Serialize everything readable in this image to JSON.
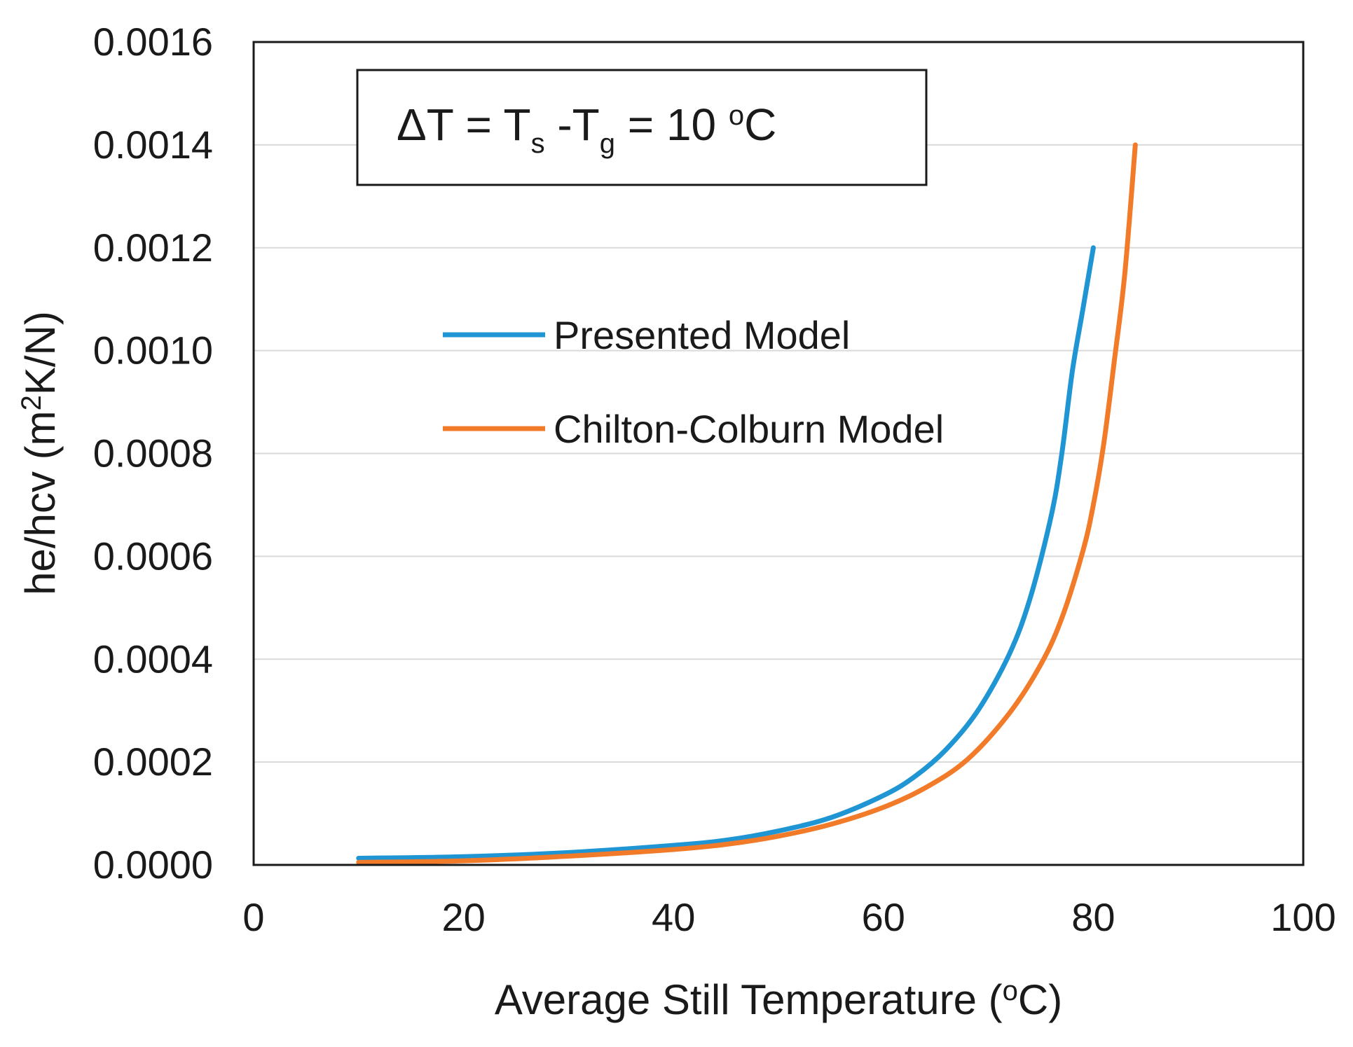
{
  "chart_data": {
    "type": "line",
    "title": "",
    "annotation": {
      "lead": "ΔT = T",
      "sub1": "s",
      "mid": " -T",
      "sub2": "g",
      "tail": " = 10 ",
      "sup": "o",
      "unit": "C"
    },
    "xlabel": {
      "main": "Average Still Temperature (",
      "sup": "o",
      "unit": "C)"
    },
    "ylabel": {
      "main": "he/hcv (m",
      "sup": "2",
      "unit": "K/N)"
    },
    "xlim": [
      0,
      100
    ],
    "ylim": [
      0,
      0.0016
    ],
    "xticks": [
      0,
      20,
      40,
      60,
      80,
      100
    ],
    "yticks": [
      0,
      0.0002,
      0.0004,
      0.0006,
      0.0008,
      0.001,
      0.0012,
      0.0014,
      0.0016
    ],
    "ytick_labels": [
      "0.0000",
      "0.0002",
      "0.0004",
      "0.0006",
      "0.0008",
      "0.0010",
      "0.0012",
      "0.0014",
      "0.0016"
    ],
    "xtick_labels": [
      "0",
      "20",
      "40",
      "60",
      "80",
      "100"
    ],
    "grid": "horizontal",
    "legend_position": "center-left",
    "series": [
      {
        "name": "Presented Model",
        "color": "#1f95d4",
        "x": [
          10,
          20,
          30,
          40,
          45,
          50,
          55,
          60,
          63,
          66,
          69,
          72,
          74,
          76,
          77,
          78,
          79,
          80
        ],
        "y": [
          1.3e-05,
          1.6e-05,
          2.4e-05,
          3.8e-05,
          4.8e-05,
          6.6e-05,
          9.2e-05,
          0.000135,
          0.000172,
          0.000225,
          0.0003,
          0.00041,
          0.00052,
          0.00068,
          0.0008,
          0.00096,
          0.00108,
          0.0012
        ]
      },
      {
        "name": "Chilton-Colburn Model",
        "color": "#f27b2a",
        "x": [
          10,
          20,
          30,
          40,
          45,
          50,
          55,
          60,
          64,
          68,
          72,
          75,
          77,
          79,
          80,
          81,
          82,
          83,
          84
        ],
        "y": [
          5e-06,
          8e-06,
          1.7e-05,
          3e-05,
          4e-05,
          5.6e-05,
          7.9e-05,
          0.000112,
          0.00015,
          0.000205,
          0.000295,
          0.00039,
          0.00048,
          0.00061,
          0.0007,
          0.00082,
          0.00098,
          0.00115,
          0.0014
        ]
      }
    ]
  }
}
